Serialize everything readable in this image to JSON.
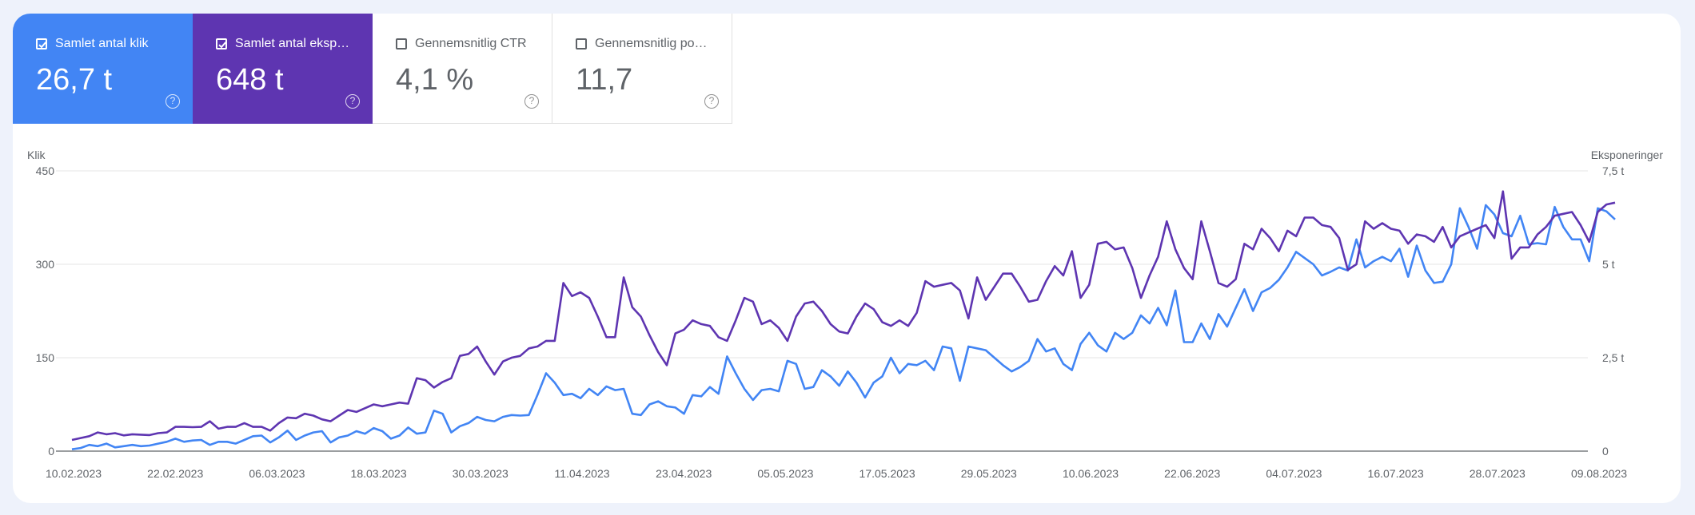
{
  "metrics": [
    {
      "label": "Samlet antal klik",
      "value": "26,7 t",
      "checked": true
    },
    {
      "label": "Samlet antal eksp…",
      "value": "648 t",
      "checked": true
    },
    {
      "label": "Gennemsnitlig CTR",
      "value": "4,1 %",
      "checked": false
    },
    {
      "label": "Gennemsnitlig po…",
      "value": "11,7",
      "checked": false
    }
  ],
  "help_glyph": "?",
  "colors": {
    "clicks": "#4285f4",
    "impressions": "#5e35b1"
  },
  "chart_data": {
    "type": "line",
    "xlabel": "",
    "y_left_label": "Klik",
    "y_right_label": "Eksponeringer",
    "y_left_ticks": [
      "0",
      "150",
      "300",
      "450"
    ],
    "y_right_ticks": [
      "0",
      "2,5 t",
      "5 t",
      "7,5 t"
    ],
    "ylim_left": [
      0,
      450
    ],
    "ylim_right": [
      0,
      7500
    ],
    "x_ticks": [
      "10.02.2023",
      "22.02.2023",
      "06.03.2023",
      "18.03.2023",
      "30.03.2023",
      "11.04.2023",
      "23.04.2023",
      "05.05.2023",
      "17.05.2023",
      "29.05.2023",
      "10.06.2023",
      "22.06.2023",
      "04.07.2023",
      "16.07.2023",
      "28.07.2023",
      "09.08.2023"
    ],
    "start_date": "10.02.2023",
    "end_date": "09.08.2023",
    "series": [
      {
        "name": "Samlet antal klik",
        "axis": "left",
        "values": [
          3,
          5,
          10,
          8,
          12,
          6,
          8,
          10,
          8,
          9,
          12,
          15,
          20,
          15,
          17,
          18,
          10,
          15,
          15,
          12,
          18,
          24,
          25,
          14,
          22,
          33,
          18,
          25,
          30,
          32,
          14,
          22,
          25,
          32,
          28,
          37,
          32,
          20,
          25,
          38,
          28,
          30,
          65,
          60,
          30,
          40,
          45,
          55,
          50,
          48,
          55,
          58,
          57,
          58,
          90,
          125,
          110,
          90,
          92,
          85,
          100,
          90,
          104,
          98,
          100,
          60,
          58,
          75,
          80,
          72,
          70,
          60,
          90,
          88,
          103,
          92,
          152,
          125,
          100,
          82,
          98,
          100,
          96,
          145,
          140,
          100,
          103,
          130,
          120,
          105,
          128,
          110,
          86,
          110,
          120,
          150,
          125,
          140,
          138,
          145,
          130,
          168,
          165,
          113,
          168,
          165,
          162,
          150,
          138,
          128,
          135,
          145,
          180,
          160,
          165,
          140,
          130,
          172,
          190,
          170,
          160,
          190,
          180,
          190,
          218,
          205,
          230,
          202,
          258,
          175,
          175,
          205,
          180,
          220,
          200,
          230,
          260,
          225,
          255,
          262,
          275,
          295,
          320,
          310,
          300,
          282,
          288,
          295,
          290,
          340,
          295,
          305,
          312,
          305,
          325,
          280,
          330,
          290,
          270,
          272,
          300,
          390,
          360,
          325,
          395,
          380,
          350,
          345,
          378,
          332,
          334,
          332,
          392,
          360,
          340,
          340,
          305,
          390,
          385,
          372
        ]
      },
      {
        "name": "Samlet antal eksponeringer",
        "axis": "right",
        "values": [
          300,
          350,
          400,
          500,
          450,
          480,
          420,
          450,
          440,
          430,
          480,
          500,
          650,
          650,
          640,
          650,
          800,
          600,
          650,
          650,
          750,
          650,
          650,
          550,
          750,
          900,
          880,
          1000,
          950,
          850,
          800,
          950,
          1100,
          1050,
          1150,
          1250,
          1200,
          1250,
          1300,
          1270,
          1950,
          1900,
          1700,
          1850,
          1950,
          2550,
          2600,
          2800,
          2400,
          2050,
          2400,
          2500,
          2550,
          2750,
          2800,
          2950,
          2950,
          4500,
          4150,
          4250,
          4100,
          3600,
          3050,
          3050,
          4650,
          3850,
          3600,
          3100,
          2650,
          2300,
          3150,
          3250,
          3500,
          3400,
          3350,
          3050,
          2950,
          3500,
          4100,
          4000,
          3400,
          3500,
          3300,
          2950,
          3600,
          3950,
          4000,
          3750,
          3400,
          3200,
          3150,
          3600,
          3950,
          3800,
          3450,
          3350,
          3500,
          3350,
          3700,
          4550,
          4400,
          4450,
          4500,
          4300,
          3550,
          4650,
          4050,
          4400,
          4750,
          4750,
          4400,
          4000,
          4050,
          4550,
          4950,
          4700,
          5350,
          4100,
          4450,
          5550,
          5600,
          5400,
          5450,
          4900,
          4100,
          4700,
          5200,
          6150,
          5400,
          4900,
          4600,
          6150,
          5350,
          4500,
          4400,
          4600,
          5550,
          5400,
          5950,
          5700,
          5350,
          5900,
          5750,
          6250,
          6250,
          6050,
          6000,
          5700,
          4850,
          5000,
          6150,
          5950,
          6100,
          5950,
          5900,
          5550,
          5800,
          5750,
          5600,
          6000,
          5450,
          5750,
          5850,
          5950,
          6050,
          5700,
          6950,
          5150,
          5450,
          5450,
          5800,
          6000,
          6300,
          6350,
          6400,
          6050,
          5600,
          6400,
          6600,
          6650
        ]
      }
    ],
    "grid": true,
    "legend": "tiles-above"
  }
}
